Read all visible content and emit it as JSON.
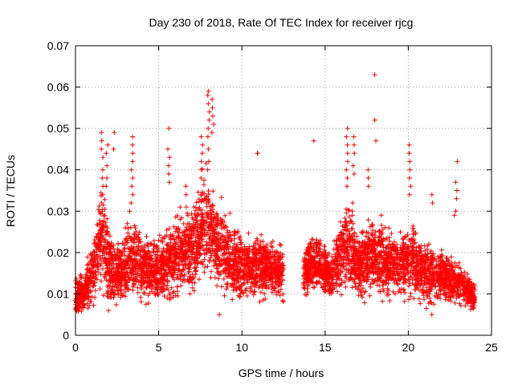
{
  "chart_data": {
    "type": "scatter",
    "title": "Day 230 of 2018, Rate Of TEC Index for receiver rjcg",
    "xlabel": "GPS time / hours",
    "ylabel": "ROTI / TECUs",
    "xlim": [
      0,
      25
    ],
    "ylim": [
      0,
      0.07
    ],
    "x_ticks": [
      0,
      5,
      10,
      15,
      20,
      25
    ],
    "x_tick_labels": [
      "0",
      "5",
      "10",
      "15",
      "20",
      "25"
    ],
    "y_ticks": [
      0,
      0.01,
      0.02,
      0.03,
      0.04,
      0.05,
      0.06,
      0.07
    ],
    "y_tick_labels": [
      "0",
      "0.01",
      "0.02",
      "0.03",
      "0.04",
      "0.05",
      "0.06",
      "0.07"
    ],
    "grid": true,
    "marker": "plus",
    "color": "#ff0000",
    "series": [
      {
        "name": "ROTI",
        "segments": [
          {
            "x_start": 0.0,
            "x_end": 12.5,
            "density": 220
          },
          {
            "x_start": 13.7,
            "x_end": 24.0,
            "density": 220
          }
        ],
        "envelope": [
          [
            0.0,
            0.0095,
            0.0045
          ],
          [
            0.5,
            0.01,
            0.004
          ],
          [
            1.0,
            0.015,
            0.006
          ],
          [
            1.6,
            0.025,
            0.012
          ],
          [
            2.0,
            0.016,
            0.008
          ],
          [
            2.6,
            0.015,
            0.007
          ],
          [
            3.4,
            0.019,
            0.009
          ],
          [
            4.2,
            0.016,
            0.007
          ],
          [
            5.0,
            0.015,
            0.0065
          ],
          [
            5.6,
            0.018,
            0.009
          ],
          [
            6.4,
            0.02,
            0.009
          ],
          [
            7.2,
            0.022,
            0.01
          ],
          [
            7.9,
            0.027,
            0.012
          ],
          [
            8.6,
            0.022,
            0.01
          ],
          [
            9.4,
            0.017,
            0.008
          ],
          [
            10.2,
            0.016,
            0.007
          ],
          [
            11.0,
            0.017,
            0.008
          ],
          [
            11.8,
            0.016,
            0.007
          ],
          [
            12.5,
            0.015,
            0.006
          ],
          [
            13.7,
            0.015,
            0.005
          ],
          [
            14.5,
            0.018,
            0.007
          ],
          [
            15.3,
            0.014,
            0.005
          ],
          [
            16.2,
            0.022,
            0.01
          ],
          [
            17.0,
            0.017,
            0.007
          ],
          [
            17.8,
            0.02,
            0.009
          ],
          [
            18.6,
            0.018,
            0.008
          ],
          [
            19.4,
            0.017,
            0.007
          ],
          [
            20.2,
            0.018,
            0.0085
          ],
          [
            21.0,
            0.015,
            0.007
          ],
          [
            22.0,
            0.014,
            0.006
          ],
          [
            23.0,
            0.013,
            0.005
          ],
          [
            24.0,
            0.009,
            0.003
          ]
        ],
        "spikes": [
          {
            "x": 1.6,
            "values": [
              0.049,
              0.047,
              0.045,
              0.043,
              0.04,
              0.038,
              0.036,
              0.034,
              0.032
            ]
          },
          {
            "x": 1.9,
            "values": [
              0.046,
              0.044,
              0.041,
              0.038,
              0.036
            ]
          },
          {
            "x": 2.35,
            "values": [
              0.049,
              0.045
            ]
          },
          {
            "x": 3.4,
            "values": [
              0.048,
              0.046,
              0.044,
              0.042,
              0.04,
              0.038,
              0.036,
              0.034,
              0.032
            ]
          },
          {
            "x": 5.6,
            "values": [
              0.05,
              0.045,
              0.043,
              0.041,
              0.039,
              0.037
            ]
          },
          {
            "x": 6.6,
            "values": [
              0.036,
              0.034,
              0.031
            ]
          },
          {
            "x": 7.6,
            "values": [
              0.048,
              0.046,
              0.044,
              0.042,
              0.04,
              0.038
            ]
          },
          {
            "x": 8.0,
            "values": [
              0.059,
              0.058,
              0.056,
              0.054,
              0.052,
              0.05,
              0.048,
              0.045,
              0.042,
              0.04
            ]
          },
          {
            "x": 8.25,
            "values": [
              0.057,
              0.055,
              0.053,
              0.051,
              0.049
            ]
          },
          {
            "x": 10.9,
            "values": [
              0.044,
              0.044
            ]
          },
          {
            "x": 14.3,
            "values": [
              0.047
            ]
          },
          {
            "x": 16.3,
            "values": [
              0.05,
              0.048,
              0.046,
              0.044,
              0.042,
              0.04,
              0.038,
              0.036
            ]
          },
          {
            "x": 16.7,
            "values": [
              0.048,
              0.046,
              0.044,
              0.041,
              0.039
            ]
          },
          {
            "x": 16.6,
            "values": [
              0.032,
              0.03,
              0.029
            ]
          },
          {
            "x": 17.6,
            "values": [
              0.04,
              0.038,
              0.036
            ]
          },
          {
            "x": 18.0,
            "values": [
              0.063,
              0.052,
              0.047
            ]
          },
          {
            "x": 20.1,
            "values": [
              0.046,
              0.044,
              0.042,
              0.04,
              0.038,
              0.036,
              0.034
            ]
          },
          {
            "x": 21.4,
            "values": [
              0.034,
              0.032
            ]
          },
          {
            "x": 22.9,
            "values": [
              0.042,
              0.037,
              0.035,
              0.033
            ]
          },
          {
            "x": 22.8,
            "values": [
              0.03,
              0.029
            ]
          },
          {
            "x": 8.7,
            "values": [
              0.005
            ]
          },
          {
            "x": 21.4,
            "values": [
              0.005
            ]
          },
          {
            "x": 0.2,
            "values": [
              0.006,
              0.007
            ]
          }
        ]
      }
    ]
  }
}
